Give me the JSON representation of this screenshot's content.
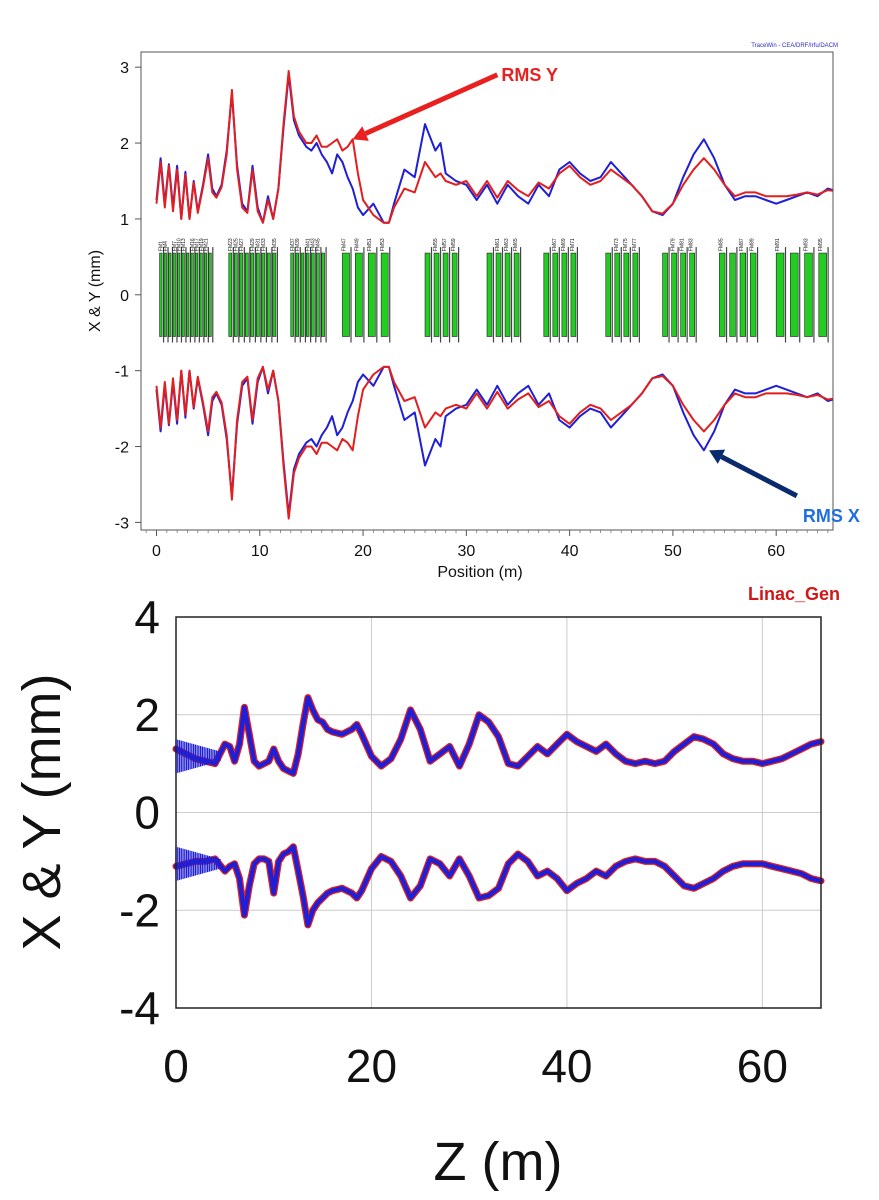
{
  "colors": {
    "rms_x": "#1f1fd6",
    "rms_y": "#e21f1f",
    "annot_y": "#e82020",
    "annot_x": "#0a2a6e",
    "annot_x_text": "#1f6fe0",
    "linac_label": "#d01818",
    "element_fill": "#22cc22",
    "grid": "#cccccc"
  },
  "chart_data": [
    {
      "type": "line",
      "title": "",
      "credit": "TraceWin - CEA/DRF/Irfu/DACM",
      "xlabel": "Position (m)",
      "ylabel": "X & Y (mm)",
      "xlim": [
        -1.5,
        65.5
      ],
      "ylim": [
        -3.1,
        3.2
      ],
      "xticks": [
        0,
        10,
        20,
        30,
        40,
        50,
        60
      ],
      "yticks": [
        -3,
        -2,
        -1,
        0,
        1,
        2,
        3
      ],
      "element_band": [
        -0.55,
        0.55
      ],
      "element_groups": [
        [
          0.3,
          5.5,
          12
        ],
        [
          7.0,
          11.8,
          9
        ],
        [
          13.0,
          16.5,
          7
        ],
        [
          18.0,
          23.0,
          4
        ],
        [
          26.0,
          29.5,
          4
        ],
        [
          32.0,
          35.5,
          4
        ],
        [
          37.5,
          41.0,
          4
        ],
        [
          43.5,
          47.0,
          4
        ],
        [
          49.0,
          52.5,
          4
        ],
        [
          54.5,
          58.5,
          4
        ],
        [
          60.0,
          65.5,
          4
        ]
      ],
      "element_labels": [
        "FM1",
        "FM4",
        "FM7",
        "FM10",
        "FM13",
        "FM16",
        "FM17",
        "FM19",
        "FM21",
        "FM23",
        "FM25",
        "FM27",
        "FM29",
        "FM31",
        "FM33",
        "FM35",
        "FM37",
        "FM39",
        "FM41",
        "FM43",
        "FM45",
        "FM47",
        "FM49",
        "FM51",
        "FM53",
        "FM55",
        "FM57",
        "FM59",
        "FM61",
        "FM63",
        "FM65",
        "FM67",
        "FM69",
        "FM71",
        "FM73",
        "FM75",
        "FM77",
        "FM79",
        "FM81",
        "FM83",
        "FM85",
        "FM87",
        "FM89",
        "FM91",
        "FM93",
        "FM95"
      ],
      "series": [
        {
          "name": "RMS X",
          "x": [
            0,
            0.4,
            0.8,
            1.2,
            1.6,
            2.0,
            2.4,
            2.8,
            3.2,
            3.6,
            4.0,
            4.5,
            5.0,
            5.4,
            5.8,
            6.3,
            6.8,
            7.3,
            7.8,
            8.3,
            8.8,
            9.3,
            9.8,
            10.3,
            10.8,
            11.3,
            11.8,
            12.3,
            12.8,
            13.3,
            13.8,
            14.5,
            15.0,
            15.5,
            16.0,
            16.5,
            17.0,
            17.5,
            18.0,
            18.5,
            19.0,
            19.5,
            20.0,
            21.0,
            22.0,
            22.5,
            23.0,
            24.0,
            25.0,
            26.0,
            27.0,
            27.5,
            28.0,
            29.0,
            30.0,
            31.0,
            32.0,
            33.0,
            34.0,
            35.0,
            36.0,
            37.0,
            38.0,
            39.0,
            40.0,
            41.0,
            42.0,
            43.0,
            44.0,
            45.0,
            46.0,
            47.0,
            48.0,
            49.0,
            50.0,
            51.0,
            52.0,
            53.0,
            54.0,
            55.0,
            56.0,
            57.0,
            58.0,
            59.0,
            60.0,
            61.0,
            62.0,
            63.0,
            64.0,
            65.0,
            65.5
          ],
          "y": [
            1.25,
            1.8,
            1.2,
            1.72,
            1.15,
            1.7,
            1.0,
            1.62,
            1.0,
            1.5,
            1.1,
            1.45,
            1.85,
            1.4,
            1.3,
            1.45,
            1.9,
            2.65,
            1.7,
            1.2,
            1.1,
            1.7,
            1.15,
            0.95,
            1.3,
            1.0,
            1.4,
            2.2,
            2.9,
            2.3,
            2.1,
            1.95,
            1.9,
            2.0,
            1.85,
            1.75,
            1.6,
            1.85,
            1.75,
            1.55,
            1.4,
            1.15,
            1.05,
            1.2,
            0.95,
            0.95,
            1.2,
            1.65,
            1.55,
            2.25,
            1.9,
            2.0,
            1.6,
            1.5,
            1.45,
            1.25,
            1.45,
            1.2,
            1.45,
            1.3,
            1.2,
            1.45,
            1.3,
            1.65,
            1.75,
            1.6,
            1.5,
            1.55,
            1.75,
            1.6,
            1.45,
            1.3,
            1.1,
            1.05,
            1.2,
            1.55,
            1.85,
            2.05,
            1.8,
            1.45,
            1.25,
            1.3,
            1.3,
            1.25,
            1.2,
            1.25,
            1.3,
            1.35,
            1.3,
            1.4,
            1.38
          ]
        },
        {
          "name": "RMS Y",
          "x": [
            0,
            0.4,
            0.8,
            1.2,
            1.6,
            2.0,
            2.4,
            2.8,
            3.2,
            3.6,
            4.0,
            4.5,
            5.0,
            5.4,
            5.8,
            6.3,
            6.8,
            7.3,
            7.8,
            8.3,
            8.8,
            9.3,
            9.8,
            10.3,
            10.8,
            11.3,
            11.8,
            12.3,
            12.8,
            13.3,
            13.8,
            14.5,
            15.0,
            15.5,
            16.0,
            16.5,
            17.0,
            17.5,
            18.0,
            18.5,
            19.0,
            19.5,
            20.0,
            21.0,
            22.0,
            22.5,
            23.0,
            24.0,
            25.0,
            26.0,
            27.0,
            27.5,
            28.0,
            29.0,
            30.0,
            31.0,
            32.0,
            33.0,
            34.0,
            35.0,
            36.0,
            37.0,
            38.0,
            39.0,
            40.0,
            41.0,
            42.0,
            43.0,
            44.0,
            45.0,
            46.0,
            47.0,
            48.0,
            49.0,
            50.0,
            51.0,
            52.0,
            53.0,
            54.0,
            55.0,
            56.0,
            57.0,
            58.0,
            59.0,
            60.0,
            61.0,
            62.0,
            63.0,
            64.0,
            65.0,
            65.5
          ],
          "y": [
            1.2,
            1.75,
            1.15,
            1.7,
            1.1,
            1.65,
            1.0,
            1.58,
            1.0,
            1.48,
            1.08,
            1.42,
            1.8,
            1.35,
            1.28,
            1.42,
            1.85,
            2.7,
            1.65,
            1.15,
            1.08,
            1.65,
            1.1,
            0.95,
            1.25,
            1.0,
            1.4,
            2.25,
            2.95,
            2.35,
            2.15,
            2.0,
            2.0,
            2.1,
            1.95,
            1.95,
            2.0,
            2.05,
            1.9,
            1.95,
            2.05,
            1.6,
            1.25,
            1.05,
            0.95,
            0.95,
            1.15,
            1.4,
            1.35,
            1.75,
            1.55,
            1.6,
            1.5,
            1.45,
            1.5,
            1.3,
            1.5,
            1.28,
            1.5,
            1.38,
            1.3,
            1.48,
            1.4,
            1.6,
            1.7,
            1.55,
            1.45,
            1.5,
            1.65,
            1.55,
            1.45,
            1.3,
            1.1,
            1.07,
            1.2,
            1.45,
            1.65,
            1.8,
            1.65,
            1.45,
            1.3,
            1.35,
            1.35,
            1.3,
            1.3,
            1.3,
            1.32,
            1.35,
            1.32,
            1.38,
            1.37
          ]
        }
      ],
      "annotations": [
        {
          "text": "RMS Y",
          "target": [
            19.0,
            2.05
          ],
          "from": [
            33.0,
            2.9
          ]
        },
        {
          "text": "RMS X",
          "target": [
            53.5,
            -2.05
          ],
          "from": [
            62.0,
            -2.65
          ]
        }
      ]
    },
    {
      "type": "line",
      "title": "",
      "label": "Linac_Gen",
      "xlabel": "Z (m)",
      "ylabel": "X & Y (mm)",
      "xlim": [
        0,
        66
      ],
      "ylim": [
        -4,
        4
      ],
      "xticks": [
        0,
        20,
        40,
        60
      ],
      "yticks": [
        4,
        2,
        0,
        -2,
        -4
      ],
      "grid": true,
      "series": [
        {
          "name": "X",
          "x": [
            0,
            1,
            2,
            3,
            4,
            5,
            5.5,
            6,
            6.5,
            7,
            7.5,
            8,
            8.5,
            9,
            9.5,
            10,
            10.5,
            11,
            11.5,
            12,
            12.5,
            13,
            13.5,
            14,
            14.5,
            15,
            15.5,
            16,
            17,
            18,
            18.5,
            19,
            20,
            21,
            22,
            23,
            24,
            25,
            26,
            27,
            28,
            29,
            30,
            31,
            32,
            33,
            34,
            35,
            36,
            37,
            38,
            39,
            40,
            41,
            42,
            43,
            44,
            45,
            46,
            47,
            48,
            49,
            50,
            51,
            52,
            53,
            54,
            55,
            56,
            57,
            58,
            59,
            60,
            61,
            62,
            63,
            64,
            65,
            66
          ],
          "y": [
            1.3,
            1.2,
            1.1,
            1.05,
            1.0,
            1.4,
            1.35,
            1.05,
            1.4,
            2.15,
            1.6,
            1.05,
            0.95,
            1.0,
            1.05,
            1.3,
            1.05,
            0.9,
            0.85,
            0.8,
            1.2,
            1.8,
            2.35,
            2.1,
            1.9,
            1.85,
            1.7,
            1.65,
            1.6,
            1.7,
            1.8,
            1.6,
            1.15,
            0.95,
            1.1,
            1.5,
            2.1,
            1.7,
            1.05,
            1.2,
            1.35,
            0.95,
            1.4,
            2.0,
            1.85,
            1.55,
            1.0,
            0.95,
            1.15,
            1.35,
            1.2,
            1.4,
            1.6,
            1.45,
            1.35,
            1.25,
            1.4,
            1.2,
            1.05,
            1.0,
            1.05,
            1.0,
            1.05,
            1.25,
            1.4,
            1.55,
            1.5,
            1.4,
            1.2,
            1.1,
            1.05,
            1.05,
            1.0,
            1.05,
            1.1,
            1.2,
            1.3,
            1.4,
            1.45
          ]
        },
        {
          "name": "Y",
          "x": [
            0,
            1,
            2,
            3,
            4,
            5,
            5.5,
            6,
            6.5,
            7,
            7.5,
            8,
            8.5,
            9,
            9.5,
            10,
            10.5,
            11,
            11.5,
            12,
            12.5,
            13,
            13.5,
            14,
            14.5,
            15,
            15.5,
            16,
            17,
            18,
            18.5,
            19,
            20,
            21,
            22,
            23,
            24,
            25,
            26,
            27,
            28,
            29,
            30,
            31,
            32,
            33,
            34,
            35,
            36,
            37,
            38,
            39,
            40,
            41,
            42,
            43,
            44,
            45,
            46,
            47,
            48,
            49,
            50,
            51,
            52,
            53,
            54,
            55,
            56,
            57,
            58,
            59,
            60,
            61,
            62,
            63,
            64,
            65,
            66
          ],
          "y": [
            -1.1,
            -1.05,
            -1.0,
            -1.0,
            -0.95,
            -1.2,
            -1.1,
            -1.05,
            -1.35,
            -2.1,
            -1.5,
            -1.05,
            -0.95,
            -0.95,
            -1.0,
            -1.65,
            -1.0,
            -0.85,
            -0.8,
            -0.7,
            -1.2,
            -1.7,
            -2.3,
            -2.0,
            -1.85,
            -1.75,
            -1.65,
            -1.6,
            -1.55,
            -1.65,
            -1.75,
            -1.6,
            -1.15,
            -0.9,
            -1.0,
            -1.3,
            -1.75,
            -1.5,
            -0.95,
            -1.05,
            -1.3,
            -0.95,
            -1.3,
            -1.75,
            -1.7,
            -1.55,
            -1.05,
            -0.85,
            -1.0,
            -1.3,
            -1.2,
            -1.35,
            -1.6,
            -1.45,
            -1.35,
            -1.2,
            -1.3,
            -1.1,
            -1.0,
            -0.95,
            -1.0,
            -1.0,
            -1.1,
            -1.3,
            -1.5,
            -1.55,
            -1.45,
            -1.35,
            -1.2,
            -1.1,
            -1.05,
            -1.05,
            -1.05,
            -1.1,
            -1.15,
            -1.2,
            -1.25,
            -1.35,
            -1.4
          ]
        }
      ]
    }
  ]
}
